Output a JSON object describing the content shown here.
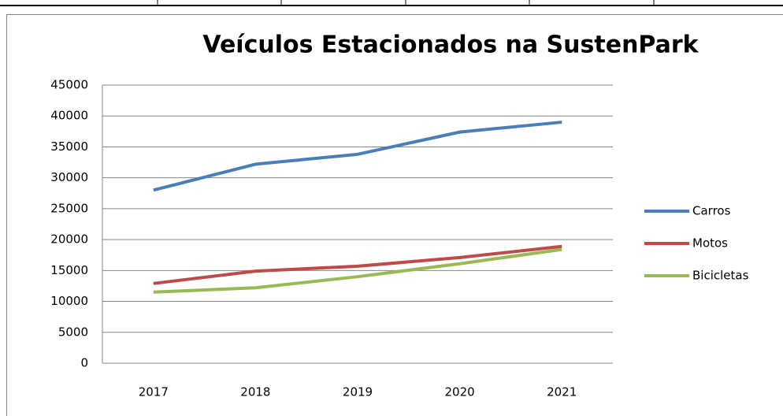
{
  "chart_data": {
    "type": "line",
    "title": "Veículos Estacionados na SustenPark",
    "categories": [
      "2017",
      "2018",
      "2019",
      "2020",
      "2021"
    ],
    "series": [
      {
        "name": "Carros",
        "color": "#4a7ebb",
        "values": [
          28000,
          32200,
          33800,
          37400,
          39000
        ]
      },
      {
        "name": "Motos",
        "color": "#be4b48",
        "values": [
          12900,
          14900,
          15700,
          17100,
          18900
        ]
      },
      {
        "name": "Bicicletas",
        "color": "#98b954",
        "values": [
          11500,
          12200,
          14000,
          16100,
          18400
        ]
      }
    ],
    "ylim": [
      0,
      45000
    ],
    "yticks": [
      0,
      5000,
      10000,
      15000,
      20000,
      25000,
      30000,
      35000,
      40000,
      45000
    ],
    "grid": true,
    "legend": "right"
  }
}
